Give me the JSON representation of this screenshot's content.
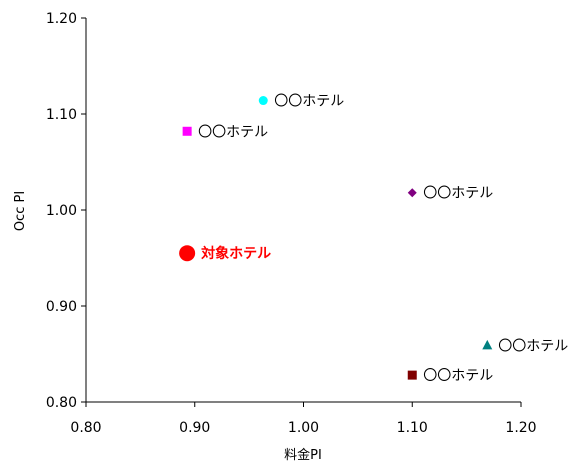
{
  "chart_data": {
    "type": "scatter",
    "xlabel": "料金PI",
    "ylabel": "Occ PI",
    "xlim": [
      0.8,
      1.2
    ],
    "ylim": [
      0.8,
      1.2
    ],
    "x_ticks": [
      "0.80",
      "0.90",
      "1.00",
      "1.10",
      "1.20"
    ],
    "y_ticks": [
      "0.80",
      "0.90",
      "1.00",
      "1.10",
      "1.20"
    ],
    "grid": false,
    "points": [
      {
        "label": "〇〇ホテル",
        "x": 0.963,
        "y": 1.114,
        "marker": "circle",
        "color": "#00ffff",
        "highlight": false
      },
      {
        "label": "〇〇ホテル",
        "x": 0.893,
        "y": 1.082,
        "marker": "square",
        "color": "#ff00ff",
        "highlight": false
      },
      {
        "label": "〇〇ホテル",
        "x": 1.1,
        "y": 1.018,
        "marker": "diamond",
        "color": "#800080",
        "highlight": false
      },
      {
        "label": "対象ホテル",
        "x": 0.893,
        "y": 0.955,
        "marker": "circle",
        "color": "#ff0000",
        "highlight": true
      },
      {
        "label": "〇〇ホテル",
        "x": 1.169,
        "y": 0.859,
        "marker": "triangle",
        "color": "#008080",
        "highlight": false
      },
      {
        "label": "〇〇ホテル",
        "x": 1.1,
        "y": 0.828,
        "marker": "square",
        "color": "#800000",
        "highlight": false
      }
    ]
  }
}
